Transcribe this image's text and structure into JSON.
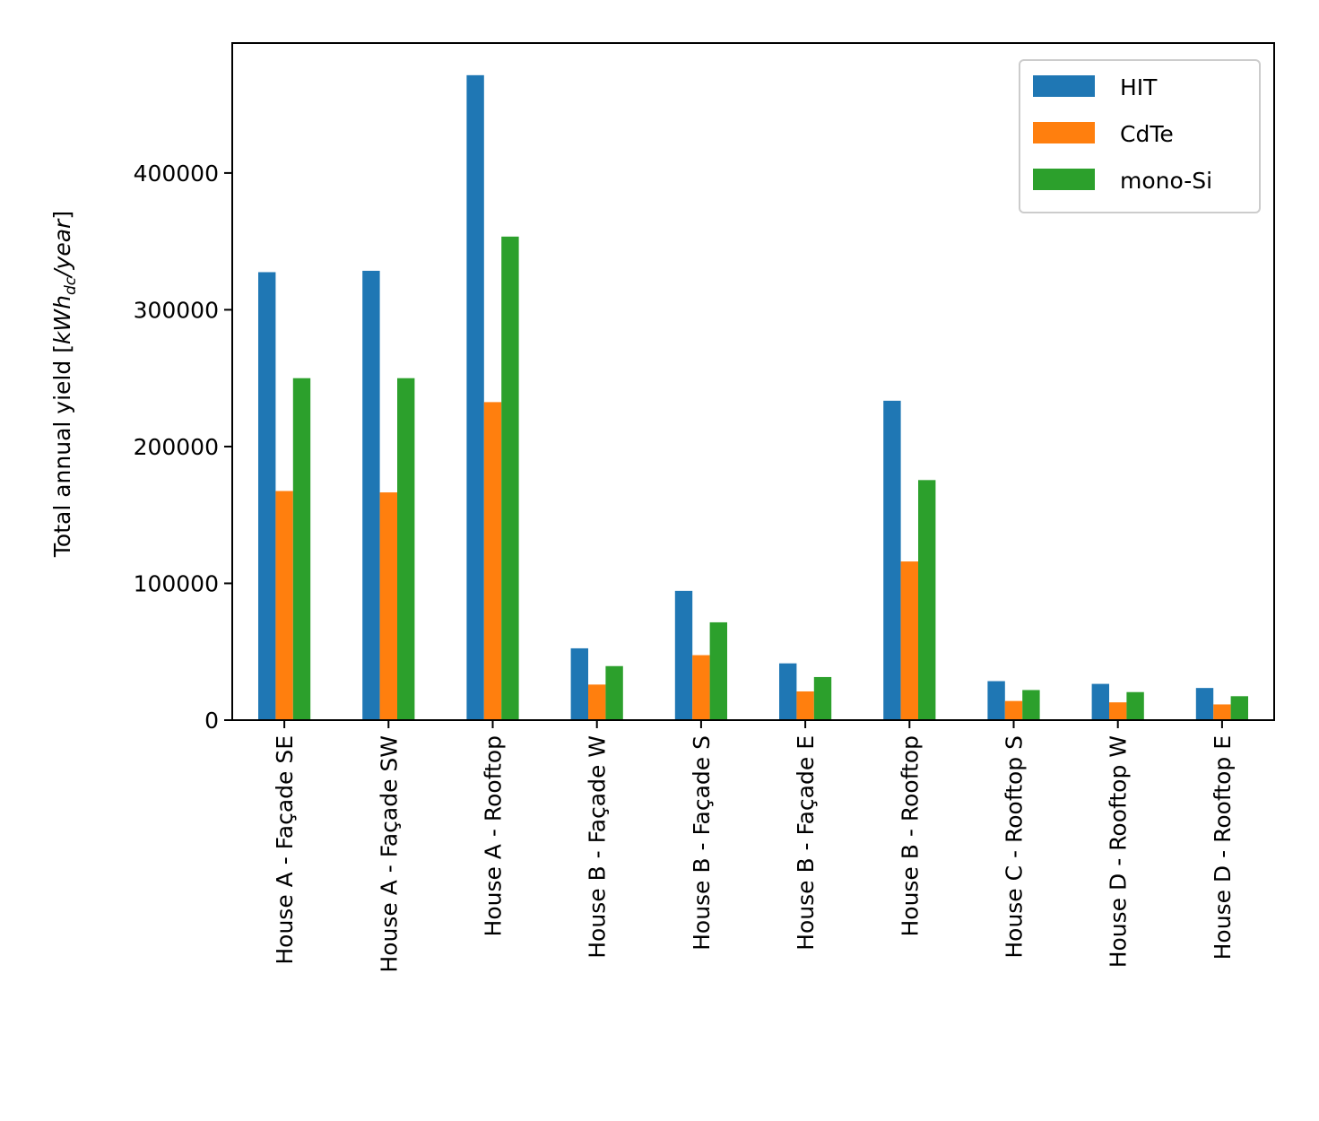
{
  "chart_data": {
    "type": "bar",
    "title": "",
    "xlabel": "",
    "ylabel": {
      "main": "Total annual yield [",
      "unit_base": "kWh",
      "unit_sub": "dc",
      "unit_rest": "/year",
      "close": "]"
    },
    "categories": [
      "House A - Façade SE",
      "House A - Façade SW",
      "House A - Rooftop",
      "House B - Façade W",
      "House B - Façade S",
      "House B - Façade E",
      "House B - Rooftop",
      "House C - Rooftop S",
      "House D - Rooftop W",
      "House D - Rooftop E"
    ],
    "series": [
      {
        "name": "HIT",
        "color": "#1f77b4",
        "values": [
          327500,
          328500,
          471500,
          52500,
          94500,
          41500,
          233500,
          28500,
          26500,
          23500
        ]
      },
      {
        "name": "CdTe",
        "color": "#ff7f0e",
        "values": [
          167500,
          166500,
          232500,
          26000,
          47500,
          21000,
          116000,
          14000,
          13000,
          11500
        ]
      },
      {
        "name": "mono-Si",
        "color": "#2ca02c",
        "values": [
          250000,
          250000,
          353500,
          39500,
          71500,
          31500,
          175500,
          22000,
          20500,
          17500
        ]
      }
    ],
    "ylim": [
      0,
      495000
    ],
    "yticks": [
      0,
      100000,
      200000,
      300000,
      400000
    ],
    "ytick_labels": [
      "0",
      "100000",
      "200000",
      "300000",
      "400000"
    ],
    "legend_position": "top-right",
    "grid": false
  }
}
